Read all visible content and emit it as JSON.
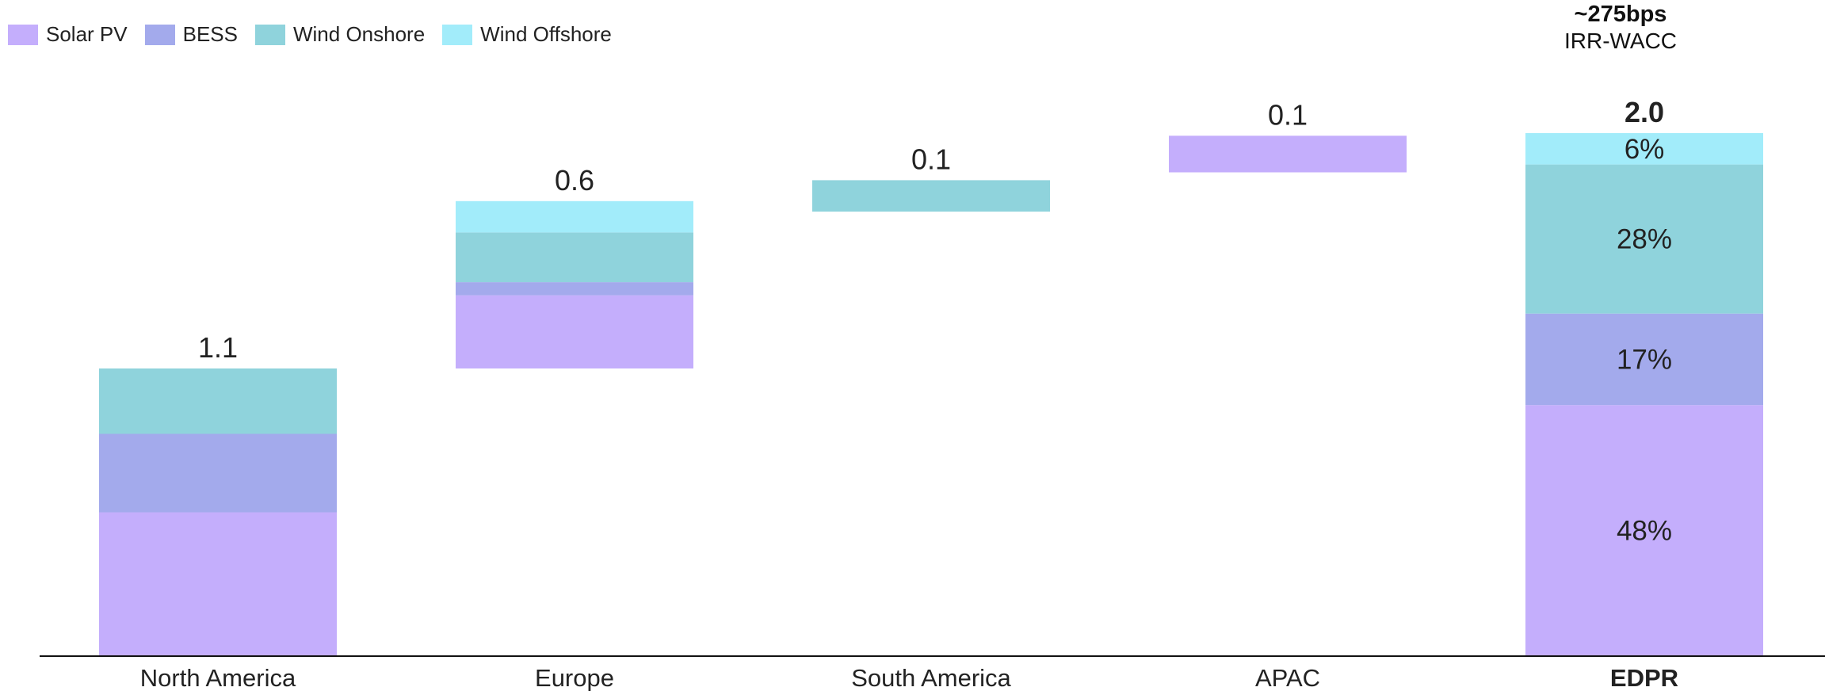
{
  "colors": {
    "Solar PV": "#c4aefc",
    "BESS": "#a3aaec",
    "Wind Onshore": "#8fd3dc",
    "Wind Offshore": "#a2ecfa",
    "axis": "#111111",
    "text": "#222222"
  },
  "headline": {
    "value": "~275bps",
    "label": "IRR-WACC"
  },
  "chart_data": {
    "type": "bar",
    "subtype": "stacked waterfall",
    "categories": [
      "North America",
      "Europe",
      "South America",
      "APAC",
      "EDPR"
    ],
    "series": [
      {
        "name": "Solar PV",
        "values": [
          0.55,
          0.28,
          0.0,
          0.14,
          0.96
        ]
      },
      {
        "name": "BESS",
        "values": [
          0.3,
          0.05,
          0.0,
          0.0,
          0.35
        ]
      },
      {
        "name": "Wind Onshore",
        "values": [
          0.25,
          0.19,
          0.12,
          0.0,
          0.57
        ]
      },
      {
        "name": "Wind Offshore",
        "values": [
          0.0,
          0.12,
          0.0,
          0.0,
          0.12
        ]
      }
    ],
    "bases": [
      0.0,
      1.1,
      1.7,
      1.85,
      0.0
    ],
    "totals": [
      "1.1",
      "0.6",
      "0.1",
      "0.1",
      "2.0"
    ],
    "bold_categories": [
      "EDPR"
    ],
    "segment_labels": {
      "EDPR": [
        "48%",
        "17%",
        "28%",
        "6%"
      ]
    },
    "ylim": [
      0,
      2.0
    ],
    "legend": [
      "Solar PV",
      "BESS",
      "Wind Onshore",
      "Wind Offshore"
    ],
    "legend_position": "top-left",
    "grid": false,
    "xlabel": "",
    "ylabel": ""
  }
}
